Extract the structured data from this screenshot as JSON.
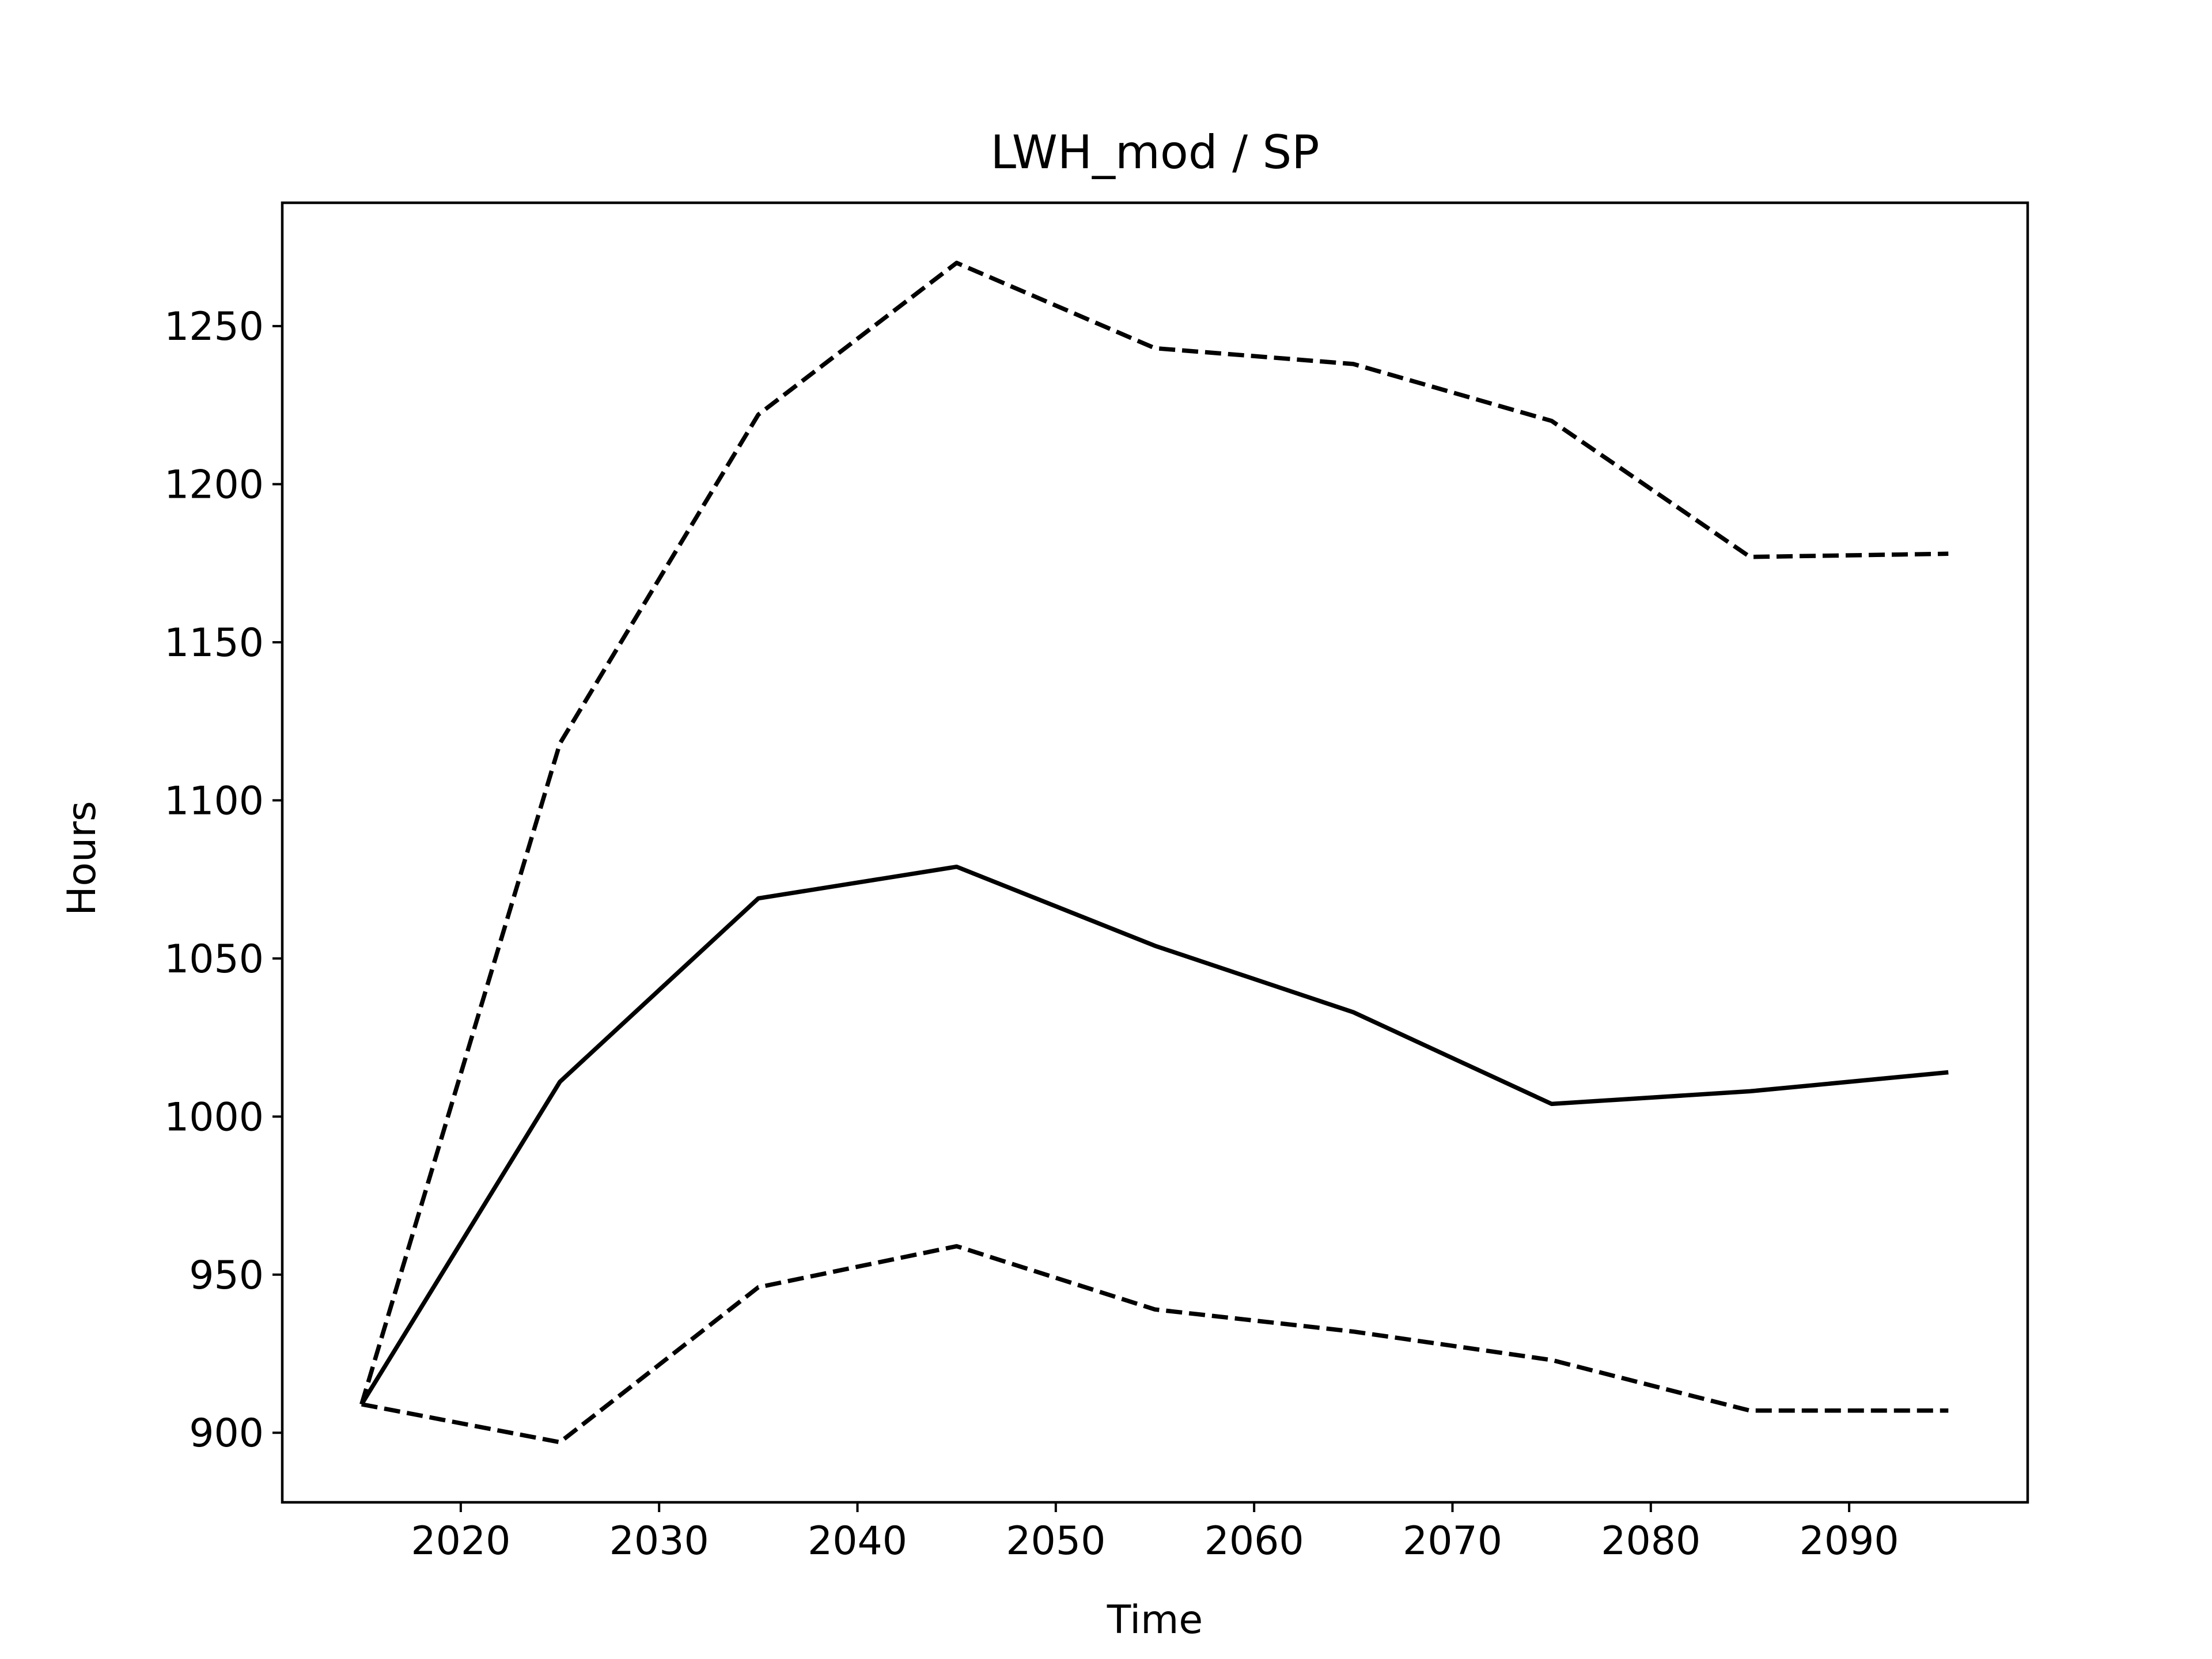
{
  "chart_data": {
    "type": "line",
    "title": "LWH_mod / SP",
    "xlabel": "Time",
    "ylabel": "Hours",
    "xlim": [
      2011,
      2099
    ],
    "ylim": [
      878,
      1289
    ],
    "xticks": [
      2020,
      2030,
      2040,
      2050,
      2060,
      2070,
      2080,
      2090
    ],
    "yticks": [
      900,
      950,
      1000,
      1050,
      1100,
      1150,
      1200,
      1250
    ],
    "grid": false,
    "legend": false,
    "line_color": "#000000",
    "x": [
      2015,
      2025,
      2035,
      2045,
      2055,
      2065,
      2075,
      2085,
      2095
    ],
    "series": [
      {
        "style": "solid",
        "values": [
          909,
          1011,
          1069,
          1079,
          1054,
          1033,
          1004,
          1008,
          1014
        ]
      },
      {
        "style": "dashed",
        "values": [
          909,
          1118,
          1222,
          1270,
          1243,
          1238,
          1220,
          1177,
          1178
        ]
      },
      {
        "style": "dashed",
        "values": [
          909,
          897,
          946,
          959,
          939,
          932,
          923,
          907,
          907
        ]
      }
    ]
  }
}
